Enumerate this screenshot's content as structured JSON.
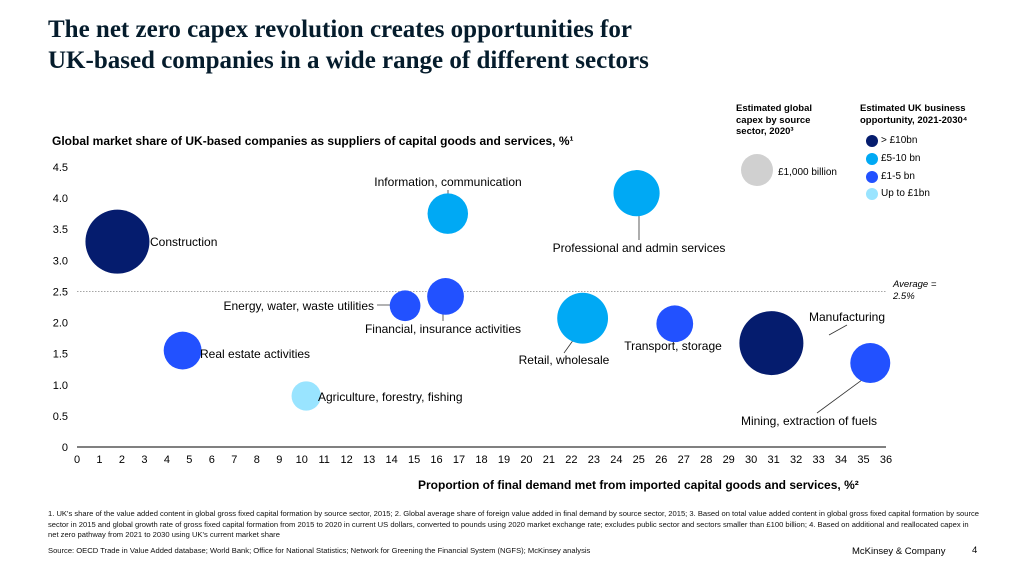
{
  "header": {
    "title_line1": "The net zero capex revolution creates opportunities for",
    "title_line2": "UK-based companies in a wide range of different sectors"
  },
  "legend": {
    "size_heading": [
      "Estimated global",
      "capex by source",
      "sector, 2020³"
    ],
    "color_heading": [
      "Estimated UK business",
      "opportunity, 2021-2030⁴"
    ],
    "size_reference_label": "£1,000 billion",
    "items": [
      {
        "label": "> £10bn",
        "color": "#051c6e"
      },
      {
        "label": "£5-10 bn",
        "color": "#00a9f4"
      },
      {
        "label": "£1-5 bn",
        "color": "#2251ff"
      },
      {
        "label": "Up to £1bn",
        "color": "#99e4ff"
      }
    ],
    "reference_color": "#d0d0d0"
  },
  "chart_data": {
    "type": "scatter",
    "title": "Global market share of UK-based companies as suppliers of capital goods and services, %¹",
    "xlabel": "Proportion of final demand met from imported capital goods and services, %²",
    "ylabel": "Global market share of UK-based companies as suppliers of capital goods and services, %¹",
    "xlim": [
      0,
      36
    ],
    "ylim": [
      0,
      4.5
    ],
    "x_ticks": [
      "0",
      "1",
      "2",
      "3",
      "4",
      "5",
      "6",
      "7",
      "8",
      "9",
      "10",
      "11",
      "12",
      "13",
      "14",
      "15",
      "16",
      "17",
      "18",
      "19",
      "20",
      "21",
      "22",
      "23",
      "24",
      "25",
      "26",
      "27",
      "28",
      "29",
      "30",
      "31",
      "32",
      "33",
      "34",
      "35",
      "36"
    ],
    "y_ticks": [
      "0",
      "0.5",
      "1.0",
      "1.5",
      "2.0",
      "2.5",
      "3.0",
      "3.5",
      "4.0",
      "4.5"
    ],
    "average": {
      "value": 2.5,
      "label_line1": "Average =",
      "label_line2": "2.5%"
    },
    "size_encoding": "Estimated global capex by source sector, 2020",
    "color_encoding": "Estimated UK business opportunity, 2021-2030",
    "points": [
      {
        "name": "Construction",
        "x": 1.8,
        "y": 3.3,
        "category": "> £10bn",
        "relative_size": 1.0
      },
      {
        "name": "Information, communication",
        "x": 16.5,
        "y": 3.75,
        "category": "£5-10 bn",
        "relative_size": 0.4
      },
      {
        "name": "Professional and admin services",
        "x": 24.9,
        "y": 4.08,
        "category": "£5-10 bn",
        "relative_size": 0.52
      },
      {
        "name": "Energy, water, waste utilities",
        "x": 14.6,
        "y": 2.27,
        "category": "£1-5 bn",
        "relative_size": 0.23
      },
      {
        "name": "Financial, insurance activities",
        "x": 16.4,
        "y": 2.42,
        "category": "£1-5 bn",
        "relative_size": 0.33
      },
      {
        "name": "Retail, wholesale",
        "x": 22.5,
        "y": 2.07,
        "category": "£5-10 bn",
        "relative_size": 0.63
      },
      {
        "name": "Transport, storage",
        "x": 26.6,
        "y": 1.98,
        "category": "£1-5 bn",
        "relative_size": 0.33
      },
      {
        "name": "Manufacturing",
        "x": 30.9,
        "y": 1.67,
        "category": "> £10bn",
        "relative_size": 1.0
      },
      {
        "name": "Real estate activities",
        "x": 4.7,
        "y": 1.55,
        "category": "£1-5 bn",
        "relative_size": 0.35
      },
      {
        "name": "Agriculture, forestry, fishing",
        "x": 10.2,
        "y": 0.82,
        "category": "Up to £1bn",
        "relative_size": 0.21
      },
      {
        "name": "Mining, extraction of fuels",
        "x": 35.3,
        "y": 1.35,
        "category": "£1-5 bn",
        "relative_size": 0.39
      }
    ]
  },
  "footer": {
    "footnotes": "1. UK's share of the value added content in global gross fixed capital formation by source sector, 2015; 2. Global average share of foreign value added in final demand by source sector, 2015; 3. Based on total value added content in global gross fixed capital formation by source sector in 2015 and global growth rate of gross fixed capital formation from 2015 to 2020 in current US dollars, converted to pounds using 2020 market exchange rate; excludes public sector and sectors smaller than £100 billion; 4. Based on additional and reallocated capex in net zero pathway from 2021 to 2030 using UK's current market share",
    "source": "Source: OECD Trade in Value Added database; World Bank; Office for National Statistics; Network for Greening the Financial System (NGFS); McKinsey analysis",
    "brand": "McKinsey & Company",
    "page_number": "4"
  }
}
